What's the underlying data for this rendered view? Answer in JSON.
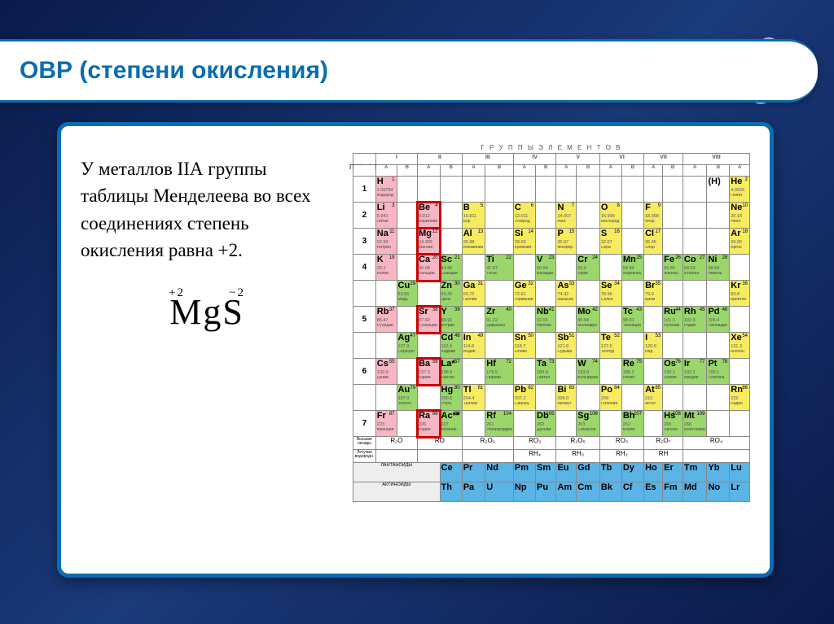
{
  "slide": {
    "title": "ОВР (степени окисления)"
  },
  "left": {
    "paragraph": "У металлов IIА группы таблицы Менделеева во всех соединениях степень окисления равна +2.",
    "formula": "MgS",
    "charge_left": "+2",
    "charge_right": "−2"
  },
  "headers": {
    "groups_label": "Г Р У П П Ы   Э Л Е М Е Н Т О В",
    "periods_label": "ПЕРИОДЫ",
    "roman": [
      "I",
      "II",
      "III",
      "IV",
      "V",
      "VI",
      "VII",
      "VIII"
    ],
    "sub": [
      "A",
      "B",
      "A",
      "B",
      "A",
      "B",
      "A",
      "B",
      "A",
      "B",
      "A",
      "B",
      "A",
      "B",
      "A",
      "B",
      "A"
    ]
  },
  "colors": {
    "pink": "#f7b6c2",
    "yellow": "#f7ec60",
    "green": "#9ad66a",
    "blue": "#5ab4e6"
  },
  "periods": [
    {
      "n": "1",
      "cells": [
        {
          "s": "H",
          "num": "1",
          "m": "1.00794",
          "nm": "Водород",
          "c": "pink"
        },
        null,
        null,
        null,
        null,
        null,
        null,
        null,
        null,
        null,
        null,
        null,
        null,
        null,
        null,
        {
          "s": "(H)",
          "num": "",
          "m": "",
          "nm": "",
          "c": "white"
        },
        {
          "s": "He",
          "num": "2",
          "m": "4.0026",
          "nm": "Гелий",
          "c": "yellow"
        }
      ]
    },
    {
      "n": "2",
      "cells": [
        {
          "s": "Li",
          "num": "3",
          "m": "6.941",
          "nm": "Литий",
          "c": "pink"
        },
        null,
        {
          "s": "Be",
          "num": "4",
          "m": "9.012",
          "nm": "Бериллий",
          "c": "pink",
          "hi": true
        },
        null,
        {
          "s": "B",
          "num": "5",
          "m": "10.811",
          "nm": "Бор",
          "c": "yellow"
        },
        null,
        {
          "s": "C",
          "num": "6",
          "m": "12.011",
          "nm": "Углерод",
          "c": "yellow"
        },
        null,
        {
          "s": "N",
          "num": "7",
          "m": "14.007",
          "nm": "Азот",
          "c": "yellow"
        },
        null,
        {
          "s": "O",
          "num": "8",
          "m": "15.999",
          "nm": "Кислород",
          "c": "yellow"
        },
        null,
        {
          "s": "F",
          "num": "9",
          "m": "18.998",
          "nm": "Фтор",
          "c": "yellow"
        },
        null,
        null,
        null,
        {
          "s": "Ne",
          "num": "10",
          "m": "20.18",
          "nm": "Неон",
          "c": "yellow"
        }
      ]
    },
    {
      "n": "3",
      "cells": [
        {
          "s": "Na",
          "num": "11",
          "m": "22.99",
          "nm": "Натрий",
          "c": "pink"
        },
        null,
        {
          "s": "Mg",
          "num": "12",
          "m": "24.305",
          "nm": "Магний",
          "c": "pink",
          "hi": true
        },
        null,
        {
          "s": "Al",
          "num": "13",
          "m": "26.98",
          "nm": "Алюминий",
          "c": "yellow"
        },
        null,
        {
          "s": "Si",
          "num": "14",
          "m": "28.09",
          "nm": "Кремний",
          "c": "yellow"
        },
        null,
        {
          "s": "P",
          "num": "15",
          "m": "30.97",
          "nm": "Фосфор",
          "c": "yellow"
        },
        null,
        {
          "s": "S",
          "num": "16",
          "m": "32.07",
          "nm": "Сера",
          "c": "yellow"
        },
        null,
        {
          "s": "Cl",
          "num": "17",
          "m": "35.45",
          "nm": "Хлор",
          "c": "yellow"
        },
        null,
        null,
        null,
        {
          "s": "Ar",
          "num": "18",
          "m": "39.95",
          "nm": "Аргон",
          "c": "yellow"
        }
      ]
    },
    {
      "n": "4",
      "cells": [
        {
          "s": "K",
          "num": "19",
          "m": "39.1",
          "nm": "Калий",
          "c": "pink"
        },
        null,
        {
          "s": "Ca",
          "num": "20",
          "m": "40.08",
          "nm": "Кальций",
          "c": "pink",
          "hi": true
        },
        {
          "s": "Sc",
          "num": "21",
          "m": "44.96",
          "nm": "Скандий",
          "c": "green"
        },
        null,
        {
          "s": "Ti",
          "num": "22",
          "m": "47.87",
          "nm": "Титан",
          "c": "green"
        },
        null,
        {
          "s": "V",
          "num": "23",
          "m": "50.94",
          "nm": "Ванадий",
          "c": "green"
        },
        null,
        {
          "s": "Cr",
          "num": "24",
          "m": "52.0",
          "nm": "Хром",
          "c": "green"
        },
        null,
        {
          "s": "Mn",
          "num": "25",
          "m": "54.94",
          "nm": "Марганец",
          "c": "green"
        },
        null,
        {
          "s": "Fe",
          "num": "26",
          "m": "55.85",
          "nm": "Железо",
          "c": "green"
        },
        {
          "s": "Co",
          "num": "27",
          "m": "58.93",
          "nm": "Кобальт",
          "c": "green"
        },
        {
          "s": "Ni",
          "num": "28",
          "m": "58.69",
          "nm": "Никель",
          "c": "green"
        },
        null
      ]
    },
    {
      "n": "4b",
      "cells": [
        null,
        {
          "s": "Cu",
          "num": "29",
          "m": "63.55",
          "nm": "Медь",
          "c": "green"
        },
        null,
        {
          "s": "Zn",
          "num": "30",
          "m": "65.39",
          "nm": "Цинк",
          "c": "green"
        },
        {
          "s": "Ga",
          "num": "31",
          "m": "69.72",
          "nm": "Галлий",
          "c": "yellow"
        },
        null,
        {
          "s": "Ge",
          "num": "32",
          "m": "72.61",
          "nm": "Германий",
          "c": "yellow"
        },
        null,
        {
          "s": "As",
          "num": "33",
          "m": "74.92",
          "nm": "Мышьяк",
          "c": "yellow"
        },
        null,
        {
          "s": "Se",
          "num": "34",
          "m": "78.96",
          "nm": "Селен",
          "c": "yellow"
        },
        null,
        {
          "s": "Br",
          "num": "35",
          "m": "79.9",
          "nm": "Бром",
          "c": "yellow"
        },
        null,
        null,
        null,
        {
          "s": "Kr",
          "num": "36",
          "m": "83.8",
          "nm": "Криптон",
          "c": "yellow"
        }
      ]
    },
    {
      "n": "5",
      "cells": [
        {
          "s": "Rb",
          "num": "37",
          "m": "85.47",
          "nm": "Рубидий",
          "c": "pink"
        },
        null,
        {
          "s": "Sr",
          "num": "38",
          "m": "87.62",
          "nm": "Стронций",
          "c": "pink",
          "hi": true
        },
        {
          "s": "Y",
          "num": "39",
          "m": "88.91",
          "nm": "Иттрий",
          "c": "green"
        },
        null,
        {
          "s": "Zr",
          "num": "40",
          "m": "91.22",
          "nm": "Цирконий",
          "c": "green"
        },
        null,
        {
          "s": "Nb",
          "num": "41",
          "m": "92.91",
          "nm": "Ниобий",
          "c": "green"
        },
        null,
        {
          "s": "Mo",
          "num": "42",
          "m": "95.94",
          "nm": "Молибден",
          "c": "green"
        },
        null,
        {
          "s": "Tc",
          "num": "43",
          "m": "98.91",
          "nm": "Технеций",
          "c": "green"
        },
        null,
        {
          "s": "Ru",
          "num": "44",
          "m": "101.1",
          "nm": "Рутений",
          "c": "green"
        },
        {
          "s": "Rh",
          "num": "45",
          "m": "102.9",
          "nm": "Родий",
          "c": "green"
        },
        {
          "s": "Pd",
          "num": "46",
          "m": "106.4",
          "nm": "Палладий",
          "c": "green"
        },
        null
      ]
    },
    {
      "n": "5b",
      "cells": [
        null,
        {
          "s": "Ag",
          "num": "47",
          "m": "107.9",
          "nm": "Серебро",
          "c": "green"
        },
        null,
        {
          "s": "Cd",
          "num": "48",
          "m": "112.4",
          "nm": "Кадмий",
          "c": "green"
        },
        {
          "s": "In",
          "num": "49",
          "m": "114.8",
          "nm": "Индий",
          "c": "yellow"
        },
        null,
        {
          "s": "Sn",
          "num": "50",
          "m": "118.7",
          "nm": "Олово",
          "c": "yellow"
        },
        null,
        {
          "s": "Sb",
          "num": "51",
          "m": "121.8",
          "nm": "Сурьма",
          "c": "yellow"
        },
        null,
        {
          "s": "Te",
          "num": "52",
          "m": "127.6",
          "nm": "Теллур",
          "c": "yellow"
        },
        null,
        {
          "s": "I",
          "num": "53",
          "m": "126.9",
          "nm": "Йод",
          "c": "yellow"
        },
        null,
        null,
        null,
        {
          "s": "Xe",
          "num": "54",
          "m": "131.3",
          "nm": "Ксенон",
          "c": "yellow"
        }
      ]
    },
    {
      "n": "6",
      "cells": [
        {
          "s": "Cs",
          "num": "55",
          "m": "132.9",
          "nm": "Цезий",
          "c": "pink"
        },
        null,
        {
          "s": "Ba",
          "num": "56",
          "m": "137.3",
          "nm": "Барий",
          "c": "pink",
          "hi": true
        },
        {
          "s": "La*",
          "num": "57",
          "m": "138.9",
          "nm": "Лантан",
          "c": "green"
        },
        null,
        {
          "s": "Hf",
          "num": "72",
          "m": "178.5",
          "nm": "Гафний",
          "c": "green"
        },
        null,
        {
          "s": "Ta",
          "num": "73",
          "m": "180.9",
          "nm": "Тантал",
          "c": "green"
        },
        null,
        {
          "s": "W",
          "num": "74",
          "m": "183.8",
          "nm": "Вольфрам",
          "c": "green"
        },
        null,
        {
          "s": "Re",
          "num": "75",
          "m": "186.2",
          "nm": "Рений",
          "c": "green"
        },
        null,
        {
          "s": "Os",
          "num": "76",
          "m": "190.2",
          "nm": "Осмий",
          "c": "green"
        },
        {
          "s": "Ir",
          "num": "77",
          "m": "192.2",
          "nm": "Иридий",
          "c": "green"
        },
        {
          "s": "Pt",
          "num": "78",
          "m": "195.1",
          "nm": "Платина",
          "c": "green"
        },
        null
      ]
    },
    {
      "n": "6b",
      "cells": [
        null,
        {
          "s": "Au",
          "num": "79",
          "m": "197.0",
          "nm": "Золото",
          "c": "green"
        },
        null,
        {
          "s": "Hg",
          "num": "80",
          "m": "200.6",
          "nm": "Ртуть",
          "c": "green"
        },
        {
          "s": "Tl",
          "num": "81",
          "m": "204.4",
          "nm": "Таллий",
          "c": "yellow"
        },
        null,
        {
          "s": "Pb",
          "num": "82",
          "m": "207.2",
          "nm": "Свинец",
          "c": "yellow"
        },
        null,
        {
          "s": "Bi",
          "num": "83",
          "m": "209.0",
          "nm": "Висмут",
          "c": "yellow"
        },
        null,
        {
          "s": "Po",
          "num": "84",
          "m": "209",
          "nm": "Полоний",
          "c": "yellow"
        },
        null,
        {
          "s": "At",
          "num": "85",
          "m": "210",
          "nm": "Астат",
          "c": "yellow"
        },
        null,
        null,
        null,
        {
          "s": "Rn",
          "num": "86",
          "m": "222",
          "nm": "Радон",
          "c": "yellow"
        }
      ]
    },
    {
      "n": "7",
      "cells": [
        {
          "s": "Fr",
          "num": "87",
          "m": "223",
          "nm": "Франций",
          "c": "pink"
        },
        null,
        {
          "s": "Ra",
          "num": "88",
          "m": "226",
          "nm": "Радий",
          "c": "pink",
          "hi": true
        },
        {
          "s": "Ac**",
          "num": "89",
          "m": "227",
          "nm": "Актиний",
          "c": "green"
        },
        null,
        {
          "s": "Rf",
          "num": "104",
          "m": "261",
          "nm": "Резерфордий",
          "c": "green"
        },
        null,
        {
          "s": "Db",
          "num": "105",
          "m": "262",
          "nm": "Дубний",
          "c": "green"
        },
        null,
        {
          "s": "Sg",
          "num": "106",
          "m": "263",
          "nm": "Сиборгий",
          "c": "green"
        },
        null,
        {
          "s": "Bh",
          "num": "107",
          "m": "262",
          "nm": "Борий",
          "c": "green"
        },
        null,
        {
          "s": "Hs",
          "num": "108",
          "m": "265",
          "nm": "Хассий",
          "c": "green"
        },
        {
          "s": "Mt",
          "num": "109",
          "m": "266",
          "nm": "Мейтнерий",
          "c": "green"
        },
        null,
        null
      ]
    }
  ],
  "oxides": {
    "label_top": "Высшие оксиды",
    "label_bot": "Летучие водородн.",
    "top": [
      "R₂O",
      "RO",
      "R₂O₃",
      "RO₂",
      "R₂O₅",
      "RO₃",
      "R₂O₇",
      "RO₄"
    ],
    "bot": [
      "",
      "",
      "",
      "RH₄",
      "RH₃",
      "RH₂",
      "RH",
      ""
    ]
  },
  "lanthanides": {
    "label": "ЛАНТАНОИДЫ",
    "cells": [
      {
        "s": "Ce",
        "c": "blue"
      },
      {
        "s": "Pr",
        "c": "blue"
      },
      {
        "s": "Nd",
        "c": "blue"
      },
      {
        "s": "Pm",
        "c": "blue"
      },
      {
        "s": "Sm",
        "c": "blue"
      },
      {
        "s": "Eu",
        "c": "blue"
      },
      {
        "s": "Gd",
        "c": "blue"
      },
      {
        "s": "Tb",
        "c": "blue"
      },
      {
        "s": "Dy",
        "c": "blue"
      },
      {
        "s": "Ho",
        "c": "blue"
      },
      {
        "s": "Er",
        "c": "blue"
      },
      {
        "s": "Tm",
        "c": "blue"
      },
      {
        "s": "Yb",
        "c": "blue"
      },
      {
        "s": "Lu",
        "c": "blue"
      }
    ]
  },
  "actinides": {
    "label": "АКТИНОИДЫ",
    "cells": [
      {
        "s": "Th",
        "c": "blue"
      },
      {
        "s": "Pa",
        "c": "blue"
      },
      {
        "s": "U",
        "c": "blue"
      },
      {
        "s": "Np",
        "c": "blue"
      },
      {
        "s": "Pu",
        "c": "blue"
      },
      {
        "s": "Am",
        "c": "blue"
      },
      {
        "s": "Cm",
        "c": "blue"
      },
      {
        "s": "Bk",
        "c": "blue"
      },
      {
        "s": "Cf",
        "c": "blue"
      },
      {
        "s": "Es",
        "c": "blue"
      },
      {
        "s": "Fm",
        "c": "blue"
      },
      {
        "s": "Md",
        "c": "blue"
      },
      {
        "s": "No",
        "c": "blue"
      },
      {
        "s": "Lr",
        "c": "blue"
      }
    ]
  }
}
